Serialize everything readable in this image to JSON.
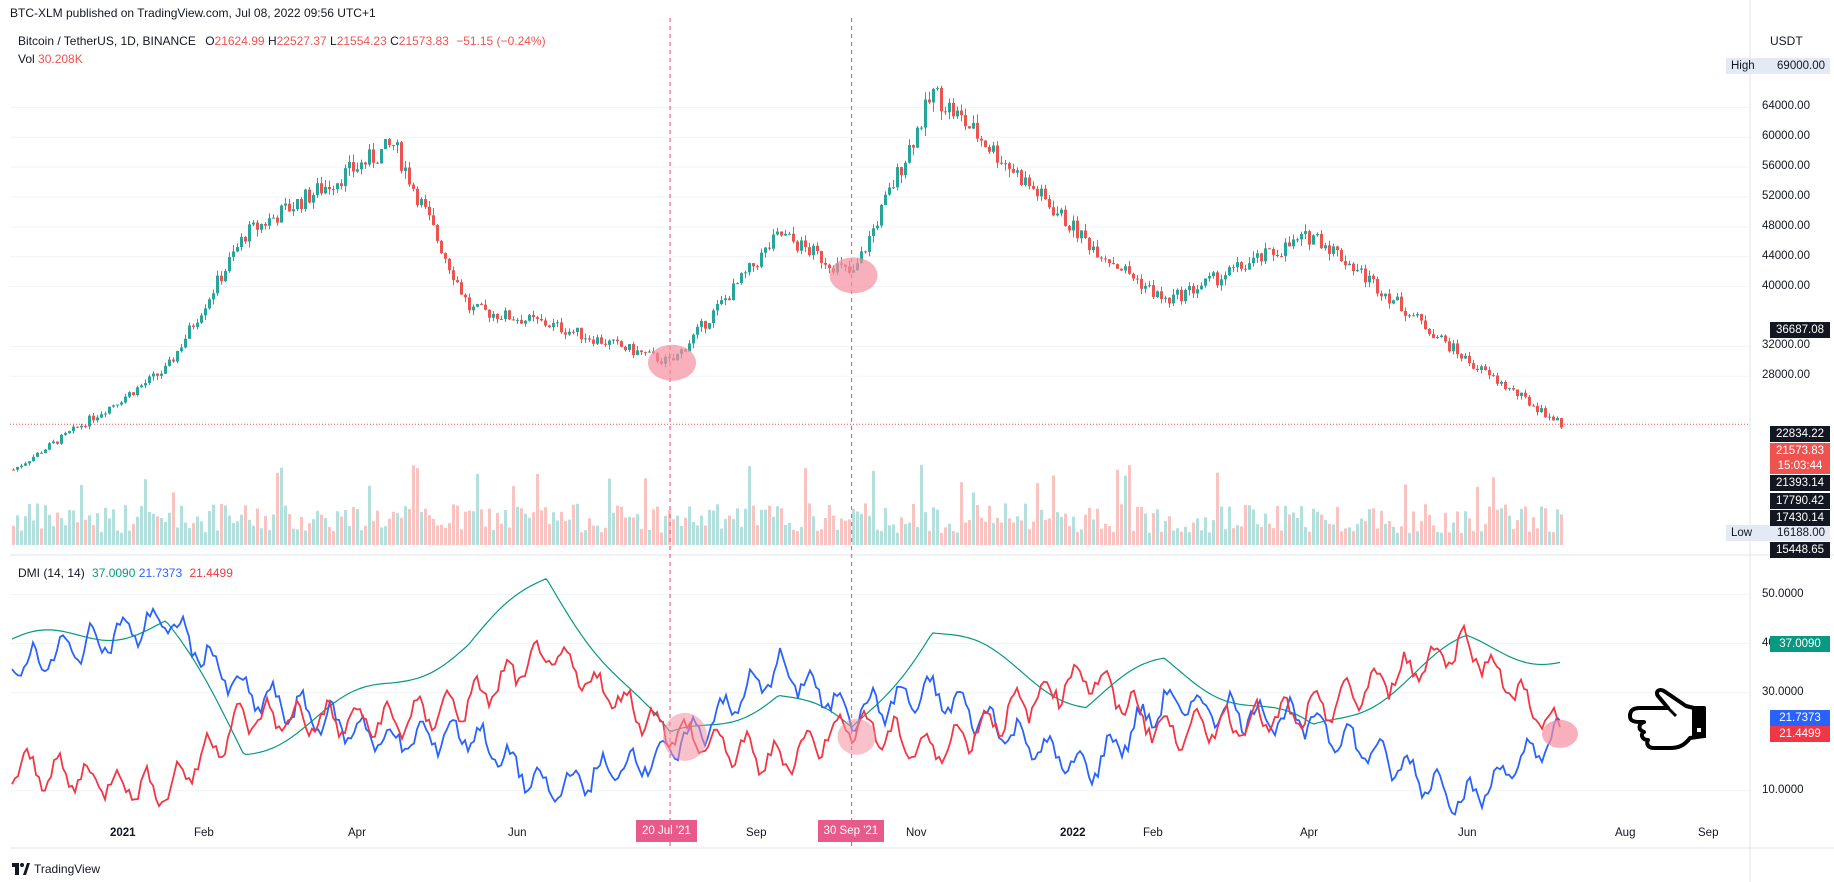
{
  "header": {
    "published": "BTC-XLM published on TradingView.com, Jul 08, 2022 09:56 UTC+1",
    "symbol": "Bitcoin / TetherUS, 1D, BINANCE",
    "o_label": "O",
    "o_value": "21624.99",
    "h_label": "H",
    "h_value": "22527.37",
    "l_label": "L",
    "l_value": "21554.23",
    "c_label": "C",
    "c_value": "21573.83",
    "change": "−51.15 (−0.24%)",
    "vol_label": "Vol",
    "vol_value": "30.208K",
    "currency": "USDT"
  },
  "dmi": {
    "label": "DMI (14, 14)",
    "adx": "37.0090",
    "plus_di": "21.7373",
    "minus_di": "21.4499"
  },
  "price_axis": {
    "ticks": [
      "64000.00",
      "60000.00",
      "56000.00",
      "52000.00",
      "48000.00",
      "44000.00",
      "40000.00",
      "32000.00",
      "28000.00"
    ],
    "high_label": "High",
    "high_value": "69000.00",
    "low_label": "Low",
    "low_value": "16188.00",
    "marks": [
      {
        "text": "36687.08",
        "color": "#131722"
      },
      {
        "text": "22834.22",
        "color": "#131722"
      },
      {
        "text": "21573.83",
        "color": "#ef5350"
      },
      {
        "text": "15:03:44",
        "color": "#ef5350"
      },
      {
        "text": "21393.14",
        "color": "#131722"
      },
      {
        "text": "17790.42",
        "color": "#131722"
      },
      {
        "text": "17430.14",
        "color": "#131722"
      },
      {
        "text": "15448.65",
        "color": "#131722"
      }
    ]
  },
  "dmi_axis": {
    "ticks": [
      "50.0000",
      "40.0000",
      "30.0000",
      "10.0000"
    ],
    "marks": [
      {
        "text": "37.0090",
        "color": "#089981"
      },
      {
        "text": "21.7373",
        "color": "#2962ff"
      },
      {
        "text": "21.4499",
        "color": "#f23645"
      }
    ]
  },
  "time_axis": {
    "ticks": [
      "2021",
      "Feb",
      "Apr",
      "Jun",
      "Sep",
      "Nov",
      "2022",
      "Feb",
      "Apr",
      "Jun",
      "Aug",
      "Sep"
    ],
    "crosshair_labels": [
      "20 Jul '21",
      "30 Sep '21"
    ]
  },
  "footer": {
    "brand": "TradingView"
  },
  "colors": {
    "up": "#26a69a",
    "down": "#ef5350",
    "adx": "#089981",
    "plus_di": "#2962ff",
    "minus_di": "#f23645",
    "highlight": "#f48fa0",
    "crosshair": "#f06292"
  },
  "chart_data": [
    {
      "type": "line",
      "title": "Bitcoin / TetherUS, 1D, BINANCE",
      "ylabel": "USDT",
      "x": [
        "2020-11",
        "2021-01",
        "2021-02",
        "2021-04",
        "2021-05",
        "2021-06",
        "2021-07-20",
        "2021-09",
        "2021-09-30",
        "2021-11",
        "2022-01",
        "2022-02",
        "2022-04",
        "2022-06",
        "2022-07-08"
      ],
      "series": [
        {
          "name": "Close",
          "values": [
            15500,
            29000,
            47000,
            59000,
            37000,
            35000,
            29800,
            47000,
            41500,
            66000,
            46000,
            38000,
            47000,
            30000,
            21573.83
          ]
        }
      ],
      "ylim": [
        15448.65,
        69000
      ],
      "high": 69000,
      "low": 16188
    },
    {
      "type": "line",
      "title": "DMI (14, 14)",
      "x": [
        "2020-11",
        "2021-01",
        "2021-02",
        "2021-04",
        "2021-05",
        "2021-06",
        "2021-07-20",
        "2021-09",
        "2021-09-30",
        "2021-11",
        "2022-01",
        "2022-02",
        "2022-04",
        "2022-06",
        "2022-07-08"
      ],
      "series": [
        {
          "name": "ADX",
          "values": [
            40,
            44,
            18,
            32,
            40,
            53,
            20,
            30,
            22,
            43,
            28,
            36,
            22,
            40,
            37.009
          ]
        },
        {
          "name": "+DI",
          "values": [
            35,
            45,
            30,
            20,
            22,
            10,
            18,
            35,
            26,
            30,
            14,
            28,
            24,
            8,
            21.7373
          ]
        },
        {
          "name": "-DI",
          "values": [
            15,
            10,
            25,
            24,
            28,
            38,
            22,
            16,
            24,
            18,
            34,
            22,
            26,
            40,
            21.4499
          ]
        }
      ],
      "ylim": [
        0,
        50
      ]
    }
  ]
}
